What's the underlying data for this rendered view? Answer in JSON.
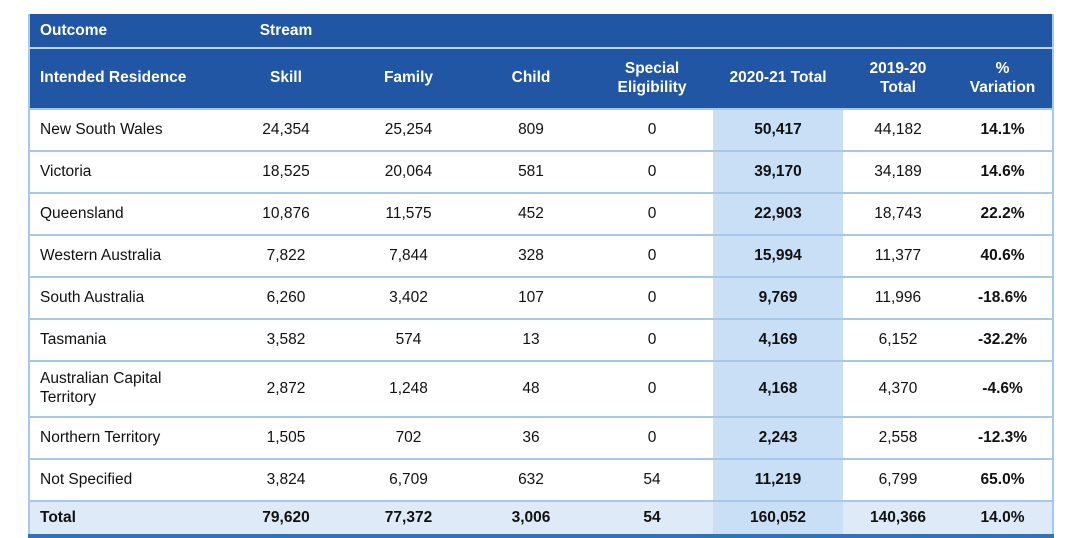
{
  "colors": {
    "header_background": "#2156A5",
    "header_text": "#FFFFFF",
    "highlight_column_background": "#C9DFF6",
    "total_row_background": "#DEEAF8",
    "row_divider": "#A9C8E8",
    "bottom_border": "#2E74B6",
    "body_text": "#111111"
  },
  "table": {
    "group_header": {
      "outcome": "Outcome",
      "stream": "Stream"
    },
    "columns": [
      "Intended Residence",
      "Skill",
      "Family",
      "Child",
      "Special Eligibility",
      "2020-21 Total",
      "2019-20 Total",
      "% Variation"
    ],
    "rows": [
      {
        "residence": "New South Wales",
        "skill": "24,354",
        "family": "25,254",
        "child": "809",
        "special": "0",
        "total_2020_21": "50,417",
        "total_2019_20": "44,182",
        "variation": "14.1%"
      },
      {
        "residence": "Victoria",
        "skill": "18,525",
        "family": "20,064",
        "child": "581",
        "special": "0",
        "total_2020_21": "39,170",
        "total_2019_20": "34,189",
        "variation": "14.6%"
      },
      {
        "residence": "Queensland",
        "skill": "10,876",
        "family": "11,575",
        "child": "452",
        "special": "0",
        "total_2020_21": "22,903",
        "total_2019_20": "18,743",
        "variation": "22.2%"
      },
      {
        "residence": "Western Australia",
        "skill": "7,822",
        "family": "7,844",
        "child": "328",
        "special": "0",
        "total_2020_21": "15,994",
        "total_2019_20": "11,377",
        "variation": "40.6%"
      },
      {
        "residence": "South Australia",
        "skill": "6,260",
        "family": "3,402",
        "child": "107",
        "special": "0",
        "total_2020_21": "9,769",
        "total_2019_20": "11,996",
        "variation": "-18.6%"
      },
      {
        "residence": "Tasmania",
        "skill": "3,582",
        "family": "574",
        "child": "13",
        "special": "0",
        "total_2020_21": "4,169",
        "total_2019_20": "6,152",
        "variation": "-32.2%"
      },
      {
        "residence": "Australian Capital Territory",
        "skill": "2,872",
        "family": "1,248",
        "child": "48",
        "special": "0",
        "total_2020_21": "4,168",
        "total_2019_20": "4,370",
        "variation": "-4.6%"
      },
      {
        "residence": "Northern Territory",
        "skill": "1,505",
        "family": "702",
        "child": "36",
        "special": "0",
        "total_2020_21": "2,243",
        "total_2019_20": "2,558",
        "variation": "-12.3%"
      },
      {
        "residence": "Not Specified",
        "skill": "3,824",
        "family": "6,709",
        "child": "632",
        "special": "54",
        "total_2020_21": "11,219",
        "total_2019_20": "6,799",
        "variation": "65.0%"
      }
    ],
    "total": {
      "residence": "Total",
      "skill": "79,620",
      "family": "77,372",
      "child": "3,006",
      "special": "54",
      "total_2020_21": "160,052",
      "total_2019_20": "140,366",
      "variation": "14.0%"
    }
  }
}
